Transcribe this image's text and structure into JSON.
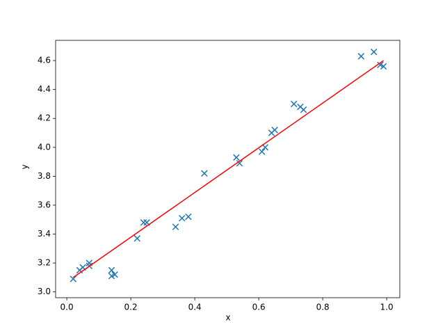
{
  "chart_data": {
    "type": "scatter",
    "x_label": "x",
    "y_label": "y",
    "xlim": [
      -0.035,
      1.041
    ],
    "ylim": [
      2.96,
      4.74
    ],
    "xticks": [
      {
        "value": 0,
        "label": "0.0"
      },
      0.2,
      0.4,
      0.6,
      0.8,
      {
        "value": 1,
        "label": "1.0"
      }
    ],
    "yticks": [
      {
        "value": 3,
        "label": "3.0"
      },
      3.2,
      3.4,
      3.6,
      3.8,
      {
        "value": 4,
        "label": "4.0"
      },
      4.2,
      4.4,
      4.6
    ],
    "series": [
      {
        "type": "scatter",
        "marker": "x",
        "color": "#1f77b4",
        "x": [
          0.02,
          0.04,
          0.05,
          0.07,
          0.07,
          0.14,
          0.14,
          0.15,
          0.22,
          0.24,
          0.25,
          0.34,
          0.36,
          0.38,
          0.43,
          0.53,
          0.54,
          0.61,
          0.62,
          0.64,
          0.65,
          0.71,
          0.73,
          0.74,
          0.92,
          0.96,
          0.98,
          0.99
        ],
        "values": [
          3.09,
          3.15,
          3.17,
          3.18,
          3.2,
          3.11,
          3.15,
          3.12,
          3.37,
          3.48,
          3.48,
          3.45,
          3.51,
          3.52,
          3.82,
          3.93,
          3.89,
          3.97,
          4.0,
          4.1,
          4.12,
          4.3,
          4.28,
          4.26,
          4.63,
          4.66,
          4.57,
          4.56
        ]
      },
      {
        "type": "line",
        "color": "#ff0000",
        "x": [
          0.02,
          0.99
        ],
        "values": [
          3.1,
          4.6
        ]
      }
    ]
  }
}
